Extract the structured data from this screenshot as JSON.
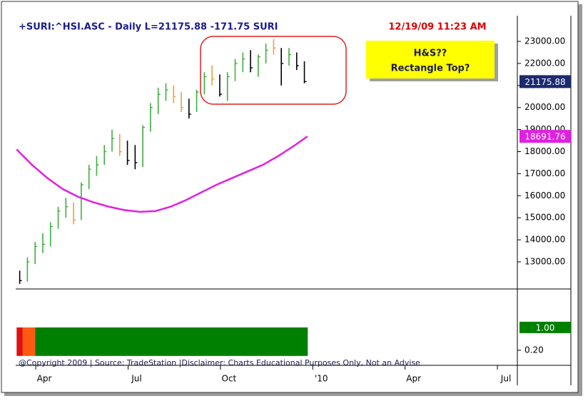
{
  "chart_data": [
    {
      "type": "ohlc",
      "title": "+SURI:^HSI.ASC - Daily  L=21175.88  -171.75  SURI",
      "subtitle": "12/19/09 11:23 AM",
      "annotations": [
        "H&S??",
        "Rectangle Top?"
      ],
      "footer": "@Copyright 2009 | Source: TradeStation |Disclaimer: Charts Educational Purposes Only, Not an Advise",
      "xlim": [
        2.07,
        18.37
      ],
      "xticks": [
        {
          "value": 3,
          "label": "Apr"
        },
        {
          "value": 6,
          "label": "Jul"
        },
        {
          "value": 9,
          "label": "Oct"
        },
        {
          "value": 12,
          "label": "'10"
        },
        {
          "value": 15,
          "label": "Apr"
        },
        {
          "value": 18,
          "label": "Jul"
        }
      ],
      "ylim": [
        11770,
        24165
      ],
      "yticks": [
        {
          "value": 13000,
          "label": "13000.00"
        },
        {
          "value": 14000,
          "label": "14000.00"
        },
        {
          "value": 15000,
          "label": "15000.00"
        },
        {
          "value": 16000,
          "label": "16000.00"
        },
        {
          "value": 17000,
          "label": "17000.00"
        },
        {
          "value": 18000,
          "label": "18000.00"
        },
        {
          "value": 19000,
          "label": "19000.00"
        },
        {
          "value": 20000,
          "label": "20000.00"
        },
        {
          "value": 21000,
          "label": "21000.00"
        },
        {
          "value": 22000,
          "label": "22000.00"
        },
        {
          "value": 23000,
          "label": "23000.00"
        }
      ],
      "x": [
        2.2,
        2.45,
        2.7,
        2.95,
        3.2,
        3.45,
        3.7,
        3.95,
        4.2,
        4.45,
        4.7,
        4.95,
        5.2,
        5.45,
        5.7,
        5.95,
        6.2,
        6.45,
        6.7,
        6.95,
        7.2,
        7.45,
        7.7,
        7.95,
        8.2,
        8.45,
        8.7,
        8.95,
        9.2,
        9.45,
        9.7,
        9.95,
        10.2,
        10.45,
        10.7,
        10.95,
        11.2,
        11.45
      ],
      "high": [
        12600,
        13200,
        13900,
        14300,
        14800,
        15500,
        15900,
        15700,
        16600,
        17400,
        17800,
        18300,
        19000,
        18800,
        18500,
        18300,
        19200,
        20200,
        20900,
        21100,
        21000,
        20700,
        20400,
        20800,
        21600,
        21900,
        21500,
        21600,
        22200,
        22500,
        22600,
        22400,
        22900,
        23100,
        22700,
        22700,
        22500,
        22100
      ],
      "low": [
        12000,
        12100,
        12900,
        13400,
        13700,
        14500,
        15000,
        14700,
        14900,
        16300,
        16900,
        17400,
        18000,
        17800,
        17400,
        17200,
        17300,
        18900,
        19700,
        20300,
        20200,
        19800,
        19500,
        19800,
        20600,
        21000,
        20500,
        20300,
        21200,
        21600,
        21600,
        21400,
        22000,
        22400,
        21000,
        21900,
        21700,
        21100
      ],
      "close": [
        12150,
        13000,
        13700,
        13800,
        14600,
        15300,
        15500,
        14900,
        16500,
        17200,
        17400,
        18000,
        18600,
        18000,
        17600,
        17500,
        19100,
        20000,
        20600,
        20800,
        20500,
        20000,
        19700,
        20700,
        21400,
        21300,
        20600,
        21400,
        22000,
        22200,
        21800,
        22300,
        22600,
        22700,
        22000,
        22400,
        21900,
        21175.88
      ],
      "bar_colors": [
        "#000000",
        "#3fae3f",
        "#3fae3f",
        "#3fae3f",
        "#3fae3f",
        "#3fae3f",
        "#3fae3f",
        "#e8a040",
        "#3fae3f",
        "#3fae3f",
        "#3fae3f",
        "#3fae3f",
        "#3fae3f",
        "#e8a040",
        "#000000",
        "#000000",
        "#3fae3f",
        "#3fae3f",
        "#3fae3f",
        "#3fae3f",
        "#e8a040",
        "#e8a040",
        "#000000",
        "#3fae3f",
        "#3fae3f",
        "#e8a040",
        "#000000",
        "#3fae3f",
        "#3fae3f",
        "#3fae3f",
        "#000000",
        "#3fae3f",
        "#3fae3f",
        "#e8a040",
        "#000000",
        "#3fae3f",
        "#000000",
        "#000000"
      ],
      "last_box_color": "#1c2a6e",
      "lines": [
        {
          "color": "#e020e0",
          "x": [
            2.1,
            2.6,
            3.1,
            3.6,
            4.1,
            4.6,
            5.1,
            5.6,
            6.1,
            6.6,
            7.1,
            7.6,
            8.1,
            8.6,
            9.1,
            9.6,
            10.1,
            10.6,
            11.1,
            11.55
          ],
          "values": [
            18100,
            17400,
            16800,
            16300,
            15950,
            15700,
            15500,
            15350,
            15270,
            15300,
            15500,
            15800,
            16150,
            16500,
            16800,
            17100,
            17400,
            17800,
            18250,
            18691.76
          ]
        }
      ]
    },
    {
      "type": "histogram",
      "bins": [
        2.1,
        2.3,
        2.7,
        11.56
      ],
      "values": [
        1,
        1,
        1
      ],
      "colors": [
        "#e01010",
        "#ff5a10",
        "#008000"
      ],
      "ylim": [
        -0.33,
        2.35
      ],
      "yticks": [
        {
          "value": 0.2,
          "label": "0.20"
        }
      ],
      "last_value": {
        "value": 1,
        "label": "1.00"
      }
    }
  ]
}
